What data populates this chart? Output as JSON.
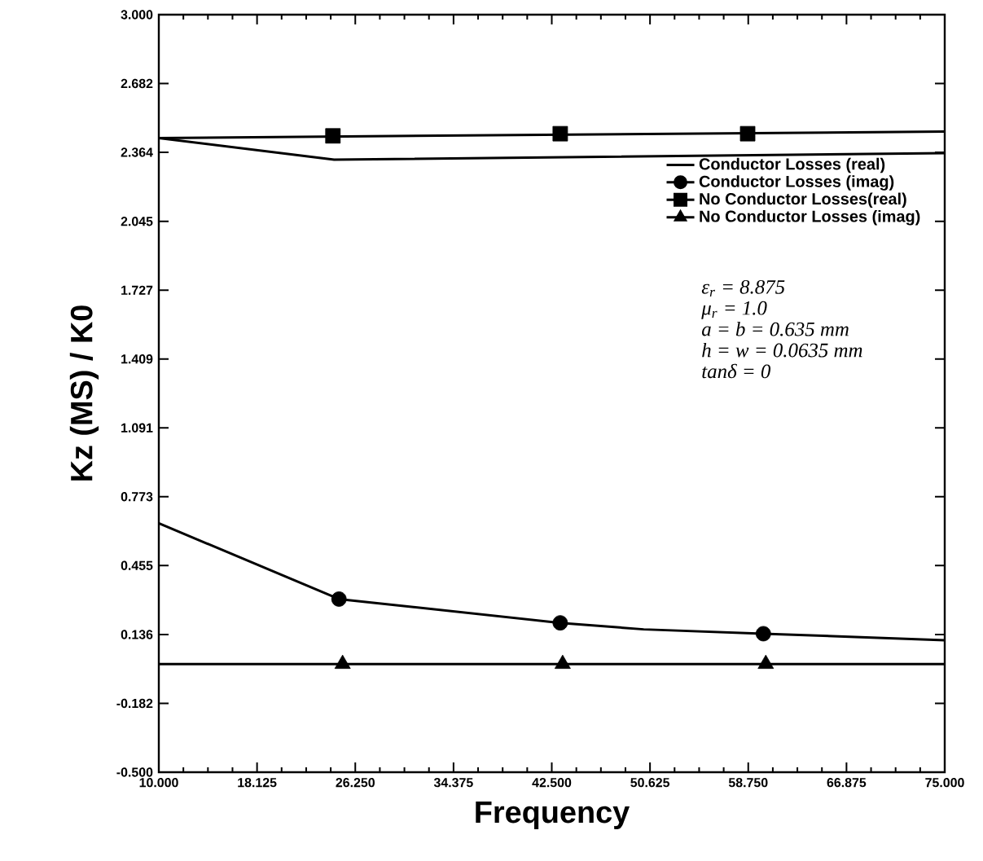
{
  "chart_data": {
    "type": "line",
    "xlabel": "Frequency",
    "ylabel": "Kz (MS)  / K0",
    "xlim": [
      10,
      75
    ],
    "ylim": [
      -0.5,
      3.0
    ],
    "xticks": [
      {
        "value": 10,
        "label": "10.000"
      },
      {
        "value": 18.125,
        "label": "18.125"
      },
      {
        "value": 26.25,
        "label": "26.250"
      },
      {
        "value": 34.375,
        "label": "34.375"
      },
      {
        "value": 42.5,
        "label": "42.500"
      },
      {
        "value": 50.625,
        "label": "50.625"
      },
      {
        "value": 58.75,
        "label": "58.750"
      },
      {
        "value": 66.875,
        "label": "66.875"
      },
      {
        "value": 75,
        "label": "75.000"
      }
    ],
    "yticks": [
      {
        "value": -0.5,
        "label": "-0.500"
      },
      -0.182,
      0.136,
      0.455,
      0.773,
      1.091,
      1.409,
      1.727,
      2.045,
      2.364,
      2.682,
      {
        "value": 3.0,
        "label": "3.000"
      }
    ],
    "grid": false,
    "legend": "right",
    "series": [
      {
        "name": "Conductor Losses (real)",
        "marker": "none",
        "color": "#000000",
        "x": [
          10,
          24.5,
          75
        ],
        "values": [
          2.43,
          2.33,
          2.36
        ]
      },
      {
        "marker": "none",
        "color": "#000000",
        "x": [
          10,
          24.9,
          43.2,
          50.1,
          60.0,
          75
        ],
        "values": [
          0.65,
          0.3,
          0.19,
          0.16,
          0.14,
          0.11
        ]
      },
      {
        "name": "Conductor Losses (imag)",
        "type": "scatter",
        "marker": "circle",
        "color": "#000000",
        "x": [
          24.9,
          43.2,
          60.0
        ],
        "values": [
          0.3,
          0.19,
          0.14
        ]
      },
      {
        "marker": "none",
        "color": "#000000",
        "x": [
          10,
          75
        ],
        "values": [
          2.43,
          2.46
        ]
      },
      {
        "name": "No Conductor Losses(real)",
        "type": "scatter",
        "marker": "square",
        "color": "#000000",
        "x": [
          24.4,
          43.2,
          58.7
        ],
        "values": [
          2.44,
          2.45,
          2.45
        ]
      },
      {
        "marker": "none",
        "color": "#000000",
        "x": [
          10,
          75
        ],
        "values": [
          0,
          0
        ]
      },
      {
        "name": "No Conductor Losses (imag)",
        "type": "scatter",
        "marker": "triangle",
        "color": "#000000",
        "x": [
          25.2,
          43.4,
          60.2
        ],
        "values": [
          0,
          0,
          0
        ]
      }
    ],
    "annotations": [
      "ε$_{r}$ = 8.875",
      "μ$_{r}$ = 1.0",
      "a = b = 0.635  mm",
      "h = w = 0.0635  mm",
      "tanδ = 0"
    ]
  }
}
